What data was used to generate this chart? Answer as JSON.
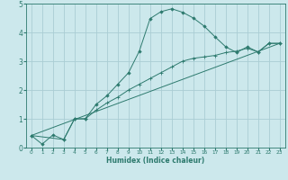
{
  "bg_color": "#cce8ec",
  "grid_color": "#aacdd4",
  "line_color": "#2d7a6e",
  "xlabel": "Humidex (Indice chaleur)",
  "xlim": [
    -0.5,
    23.5
  ],
  "ylim": [
    0,
    5
  ],
  "xticks": [
    0,
    1,
    2,
    3,
    4,
    5,
    6,
    7,
    8,
    9,
    10,
    11,
    12,
    13,
    14,
    15,
    16,
    17,
    18,
    19,
    20,
    21,
    22,
    23
  ],
  "yticks": [
    0,
    1,
    2,
    3,
    4,
    5
  ],
  "series1_x": [
    0,
    1,
    2,
    3,
    4,
    5,
    6,
    7,
    8,
    9,
    10,
    11,
    12,
    13,
    14,
    15,
    16,
    17,
    18,
    19,
    20,
    21,
    22,
    23
  ],
  "series1_y": [
    0.42,
    0.12,
    0.44,
    0.28,
    1.0,
    1.0,
    1.5,
    1.8,
    2.2,
    2.6,
    3.35,
    4.48,
    4.72,
    4.82,
    4.7,
    4.5,
    4.22,
    3.85,
    3.5,
    3.3,
    3.5,
    3.32,
    3.62,
    3.62
  ],
  "series2_x": [
    0,
    3,
    4,
    5,
    6,
    7,
    8,
    9,
    10,
    11,
    12,
    13,
    14,
    15,
    16,
    17,
    18,
    19,
    20,
    21,
    22,
    23
  ],
  "series2_y": [
    0.42,
    0.28,
    1.0,
    1.0,
    1.3,
    1.55,
    1.75,
    2.0,
    2.2,
    2.4,
    2.6,
    2.8,
    3.0,
    3.1,
    3.15,
    3.2,
    3.3,
    3.35,
    3.45,
    3.32,
    3.62,
    3.62
  ],
  "series3_x": [
    0,
    23
  ],
  "series3_y": [
    0.42,
    3.62
  ]
}
